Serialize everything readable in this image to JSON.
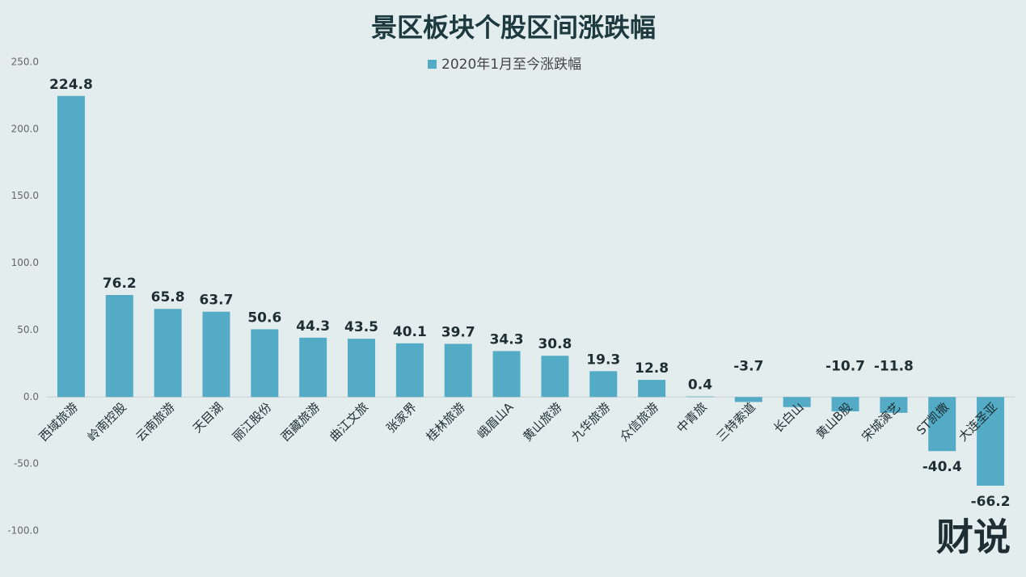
{
  "chart_data": {
    "type": "bar",
    "title": "景区板块个股区间涨跌幅",
    "categories": [
      "西域旅游",
      "岭南控股",
      "云南旅游",
      "天目湖",
      "丽江股份",
      "西藏旅游",
      "曲江文旅",
      "张家界",
      "桂林旅游",
      "峨眉山A",
      "黄山旅游",
      "九华旅游",
      "众信旅游",
      "中青旅",
      "三特索道",
      "长白山",
      "黄山B股",
      "宋城演艺",
      "ST凯撒",
      "大连圣亚"
    ],
    "series": [
      {
        "name": "2020年1月至今涨跌幅",
        "color": "#54abc5",
        "values": [
          224.8,
          76.2,
          65.8,
          63.7,
          50.6,
          44.3,
          43.5,
          40.1,
          39.7,
          34.3,
          30.8,
          19.3,
          12.8,
          0.4,
          -3.7,
          -7.5,
          -10.7,
          -11.8,
          -40.4,
          -66.2
        ],
        "value_labels": [
          "224.8",
          "76.2",
          "65.8",
          "63.7",
          "50.6",
          "44.3",
          "43.5",
          "40.1",
          "39.7",
          "34.3",
          "30.8",
          "19.3",
          "12.8",
          "0.4",
          "-3.7",
          null,
          "-10.7",
          "-11.8",
          "-40.4",
          "-66.2"
        ]
      }
    ],
    "ylim": [
      -100,
      250
    ],
    "yticks": [
      {
        "value": -100,
        "label": "-100.0"
      },
      {
        "value": -50,
        "label": "-50.0"
      },
      {
        "value": 0,
        "label": "0.0"
      },
      {
        "value": 50,
        "label": "50.0"
      },
      {
        "value": 100,
        "label": "100.0"
      },
      {
        "value": 150,
        "label": "150.0"
      },
      {
        "value": 200,
        "label": "200.0"
      },
      {
        "value": 250,
        "label": "250.0"
      }
    ],
    "grid": false,
    "legend": "top",
    "logo": "财说"
  }
}
